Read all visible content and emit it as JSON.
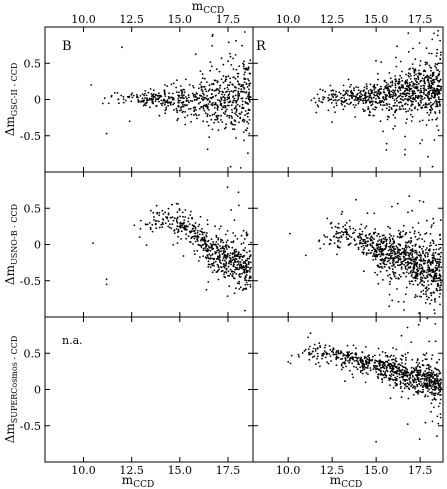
{
  "figure": {
    "top_axis_label": "m",
    "top_axis_label_sub": "CCD",
    "bottom_axis_label": "m",
    "bottom_axis_label_sub": "CCD",
    "na_label": "n.a."
  },
  "chart_data": {
    "type": "scatter",
    "layout": "3 rows x 2 columns (B, R)",
    "x_ticks": [
      10.0,
      12.5,
      15.0,
      17.5
    ],
    "x_tick_labels": [
      "10.0",
      "12.5",
      "15.0",
      "17.5"
    ],
    "xlim": [
      8.0,
      18.8
    ],
    "y_ticks": [
      -0.5,
      0,
      0.5
    ],
    "y_tick_labels": [
      "-0.5",
      "0",
      "0.5"
    ],
    "ylim": [
      -1.0,
      1.0
    ],
    "grid": false,
    "columns": [
      "B",
      "R"
    ],
    "rows": [
      {
        "ylabel": "Δm",
        "ylabel_sub": "GSC-II - CCD"
      },
      {
        "ylabel": "Δm",
        "ylabel_sub": "USNO-B - CCD"
      },
      {
        "ylabel": "Δm",
        "ylabel_sub": "SUPERCosmos - CCD"
      }
    ],
    "panels": [
      {
        "row": 0,
        "column": "B",
        "available": true,
        "trend": {
          "x": [
            10.5,
            12.5,
            14.0,
            15.5,
            17.0,
            18.7
          ],
          "y": [
            0.03,
            0.02,
            0.0,
            -0.03,
            0.0,
            0.08
          ]
        },
        "scatter_sigma": [
          0.03,
          0.06,
          0.1,
          0.16,
          0.26,
          0.35
        ],
        "n_points": 650,
        "sample_points": [
          {
            "x": 10.4,
            "y": 0.2
          },
          {
            "x": 11.2,
            "y": -0.47
          },
          {
            "x": 12.0,
            "y": 0.72
          },
          {
            "x": 12.4,
            "y": -0.3
          }
        ]
      },
      {
        "row": 0,
        "column": "R",
        "available": true,
        "trend": {
          "x": [
            11.0,
            12.5,
            14.0,
            15.5,
            17.0,
            18.7
          ],
          "y": [
            -0.05,
            0.02,
            0.03,
            0.05,
            0.15,
            0.15
          ]
        },
        "scatter_sigma": [
          0.05,
          0.08,
          0.12,
          0.18,
          0.25,
          0.3
        ],
        "n_points": 850,
        "sample_points": [
          {
            "x": 11.6,
            "y": -0.18
          },
          {
            "x": 12.0,
            "y": 0.0
          }
        ]
      },
      {
        "row": 1,
        "column": "B",
        "available": true,
        "trend": {
          "x": [
            12.5,
            13.5,
            14.5,
            15.5,
            16.5,
            17.5,
            18.7
          ],
          "y": [
            0.2,
            0.3,
            0.35,
            0.2,
            -0.05,
            -0.2,
            -0.35
          ]
        },
        "scatter_sigma": [
          0.1,
          0.1,
          0.12,
          0.15,
          0.18,
          0.22,
          0.26
        ],
        "n_points": 600,
        "sample_points": [
          {
            "x": 10.5,
            "y": 0.02
          },
          {
            "x": 11.2,
            "y": -0.48
          },
          {
            "x": 11.2,
            "y": -0.55
          }
        ]
      },
      {
        "row": 1,
        "column": "R",
        "available": true,
        "trend": {
          "x": [
            11.5,
            13.0,
            14.0,
            15.0,
            16.0,
            17.0,
            18.0,
            18.7
          ],
          "y": [
            0.1,
            0.15,
            0.1,
            -0.05,
            -0.15,
            -0.25,
            -0.3,
            -0.35
          ]
        },
        "scatter_sigma": [
          0.12,
          0.12,
          0.14,
          0.18,
          0.22,
          0.25,
          0.28,
          0.3
        ],
        "n_points": 900,
        "sample_points": [
          {
            "x": 10.1,
            "y": 0.15
          },
          {
            "x": 11.0,
            "y": -0.15
          }
        ]
      },
      {
        "row": 2,
        "column": "B",
        "available": false
      },
      {
        "row": 2,
        "column": "R",
        "available": true,
        "trend": {
          "x": [
            10.0,
            12.5,
            14.0,
            15.5,
            16.5,
            17.5,
            18.7
          ],
          "y": [
            0.5,
            0.5,
            0.4,
            0.3,
            0.22,
            0.15,
            0.05
          ]
        },
        "scatter_sigma": [
          0.08,
          0.08,
          0.1,
          0.12,
          0.14,
          0.16,
          0.2
        ],
        "n_points": 800,
        "sample_points": [
          {
            "x": 10.0,
            "y": 0.38
          },
          {
            "x": 11.8,
            "y": 0.32
          },
          {
            "x": 15.0,
            "y": -0.72
          }
        ]
      }
    ]
  }
}
